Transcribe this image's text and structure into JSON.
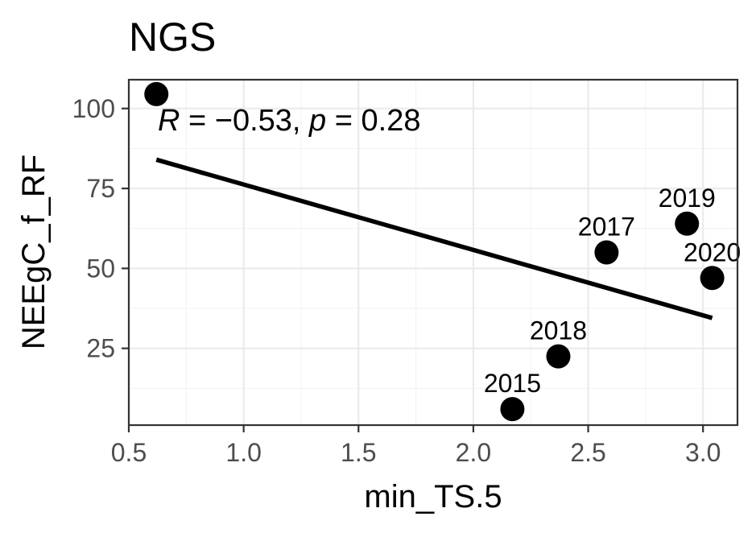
{
  "chart_data": {
    "type": "scatter",
    "title": "NGS",
    "xlabel": "min_TS.5",
    "ylabel": "NEEgC_f_RF",
    "xlim": [
      0.5,
      3.15
    ],
    "ylim": [
      1,
      109
    ],
    "x_ticks": [
      0.5,
      1.0,
      1.5,
      2.0,
      2.5,
      3.0
    ],
    "x_tick_labels": [
      "0.5",
      "1.0",
      "1.5",
      "2.0",
      "2.5",
      "3.0"
    ],
    "y_ticks": [
      25,
      50,
      75,
      100
    ],
    "y_tick_labels": [
      "25",
      "50",
      "75",
      "100"
    ],
    "grid": true,
    "points": [
      {
        "x": 0.62,
        "y": 104.5,
        "label": ""
      },
      {
        "x": 2.17,
        "y": 6.0,
        "label": "2015"
      },
      {
        "x": 2.58,
        "y": 55.0,
        "label": "2017"
      },
      {
        "x": 2.37,
        "y": 22.5,
        "label": "2018"
      },
      {
        "x": 2.93,
        "y": 64.0,
        "label": "2019"
      },
      {
        "x": 3.04,
        "y": 47.0,
        "label": "2020"
      }
    ],
    "regression_line": {
      "x": [
        0.62,
        3.04
      ],
      "y": [
        84.0,
        34.5
      ]
    },
    "annotation": {
      "r_symbol": "R",
      "r_eq": " = ",
      "r_value": "−0.53",
      "sep": ", ",
      "p_symbol": "p",
      "p_eq": " = ",
      "p_value": "0.28"
    }
  }
}
